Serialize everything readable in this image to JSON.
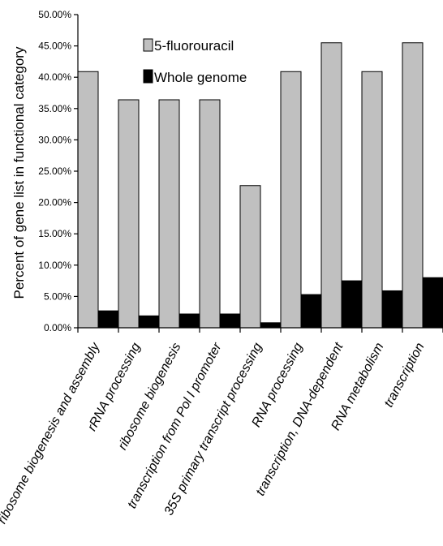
{
  "chart_data": {
    "type": "bar",
    "title": "",
    "xlabel": "",
    "ylabel": "Percent of gene list in functional category",
    "ylim": [
      0,
      50
    ],
    "y_ticks": [
      "0.00%",
      "5.00%",
      "10.00%",
      "15.00%",
      "20.00%",
      "25.00%",
      "30.00%",
      "35.00%",
      "40.00%",
      "45.00%",
      "50.00%"
    ],
    "categories": [
      "ribosome biogenesis and assembly",
      "rRNA processing",
      "ribosome biogenesis",
      "transcription from Pol I promoter",
      "35S primary transcript processing",
      "RNA processing",
      "transcription, DNA-dependent",
      "RNA metabolism",
      "transcription"
    ],
    "series": [
      {
        "name": "5-fluorouracil",
        "color": "#c0c0c0",
        "values": [
          40.9,
          36.4,
          36.4,
          36.4,
          22.7,
          40.9,
          45.5,
          40.9,
          45.5
        ]
      },
      {
        "name": "Whole genome",
        "color": "#000000",
        "values": [
          2.7,
          1.9,
          2.2,
          2.2,
          0.8,
          5.3,
          7.5,
          5.9,
          8.0
        ]
      }
    ],
    "grid": false,
    "legend_position": "top-center"
  }
}
